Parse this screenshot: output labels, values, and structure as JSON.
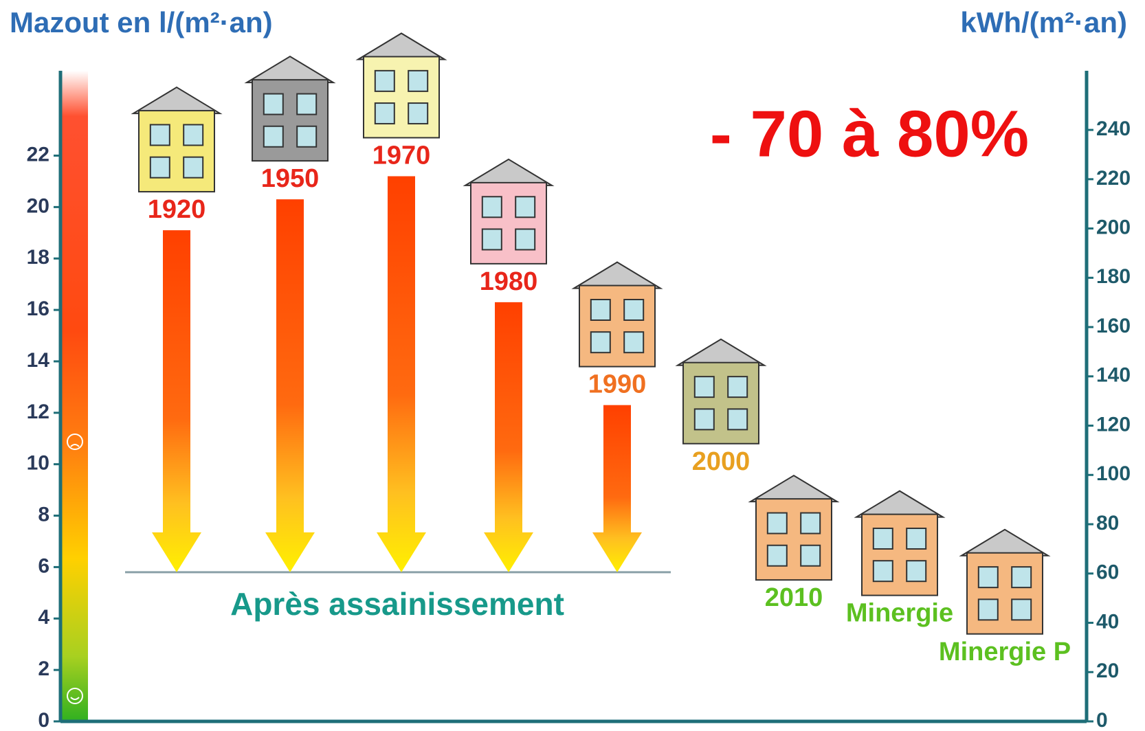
{
  "chart_data": {
    "type": "bar",
    "title_left": "Mazout en l/(m²·an)",
    "title_right": "kWh/(m²·an)",
    "annotation": "- 70 à 80%",
    "renovated_label": "Après assainissement",
    "renovated_value": 5.8,
    "categories": [
      "1920",
      "1950",
      "1970",
      "1980",
      "1990",
      "2000",
      "2010",
      "Minergie",
      "Minergie P"
    ],
    "values": [
      19.1,
      20.3,
      21.2,
      16.3,
      12.3,
      10.8,
      5.5,
      4.9,
      3.4
    ],
    "colors": [
      "#f5e97a",
      "#9a9a9a",
      "#f7f3b0",
      "#f8c0c8",
      "#f5b880",
      "#c2c28a",
      "#f5b880",
      "#f5b880",
      "#f5b880"
    ],
    "label_colors": [
      "#e8261a",
      "#e8261a",
      "#e8261a",
      "#e8261a",
      "#f07020",
      "#e8a020",
      "#5cc020",
      "#5cc020",
      "#5cc020"
    ],
    "ylim": [
      0,
      25.3
    ],
    "yticks": [
      0,
      2,
      4,
      6,
      8,
      10,
      12,
      14,
      16,
      18,
      20,
      22
    ],
    "y2lim": [
      0,
      264
    ],
    "y2ticks": [
      0,
      20,
      40,
      60,
      80,
      100,
      120,
      140,
      160,
      180,
      200,
      220,
      240
    ]
  }
}
